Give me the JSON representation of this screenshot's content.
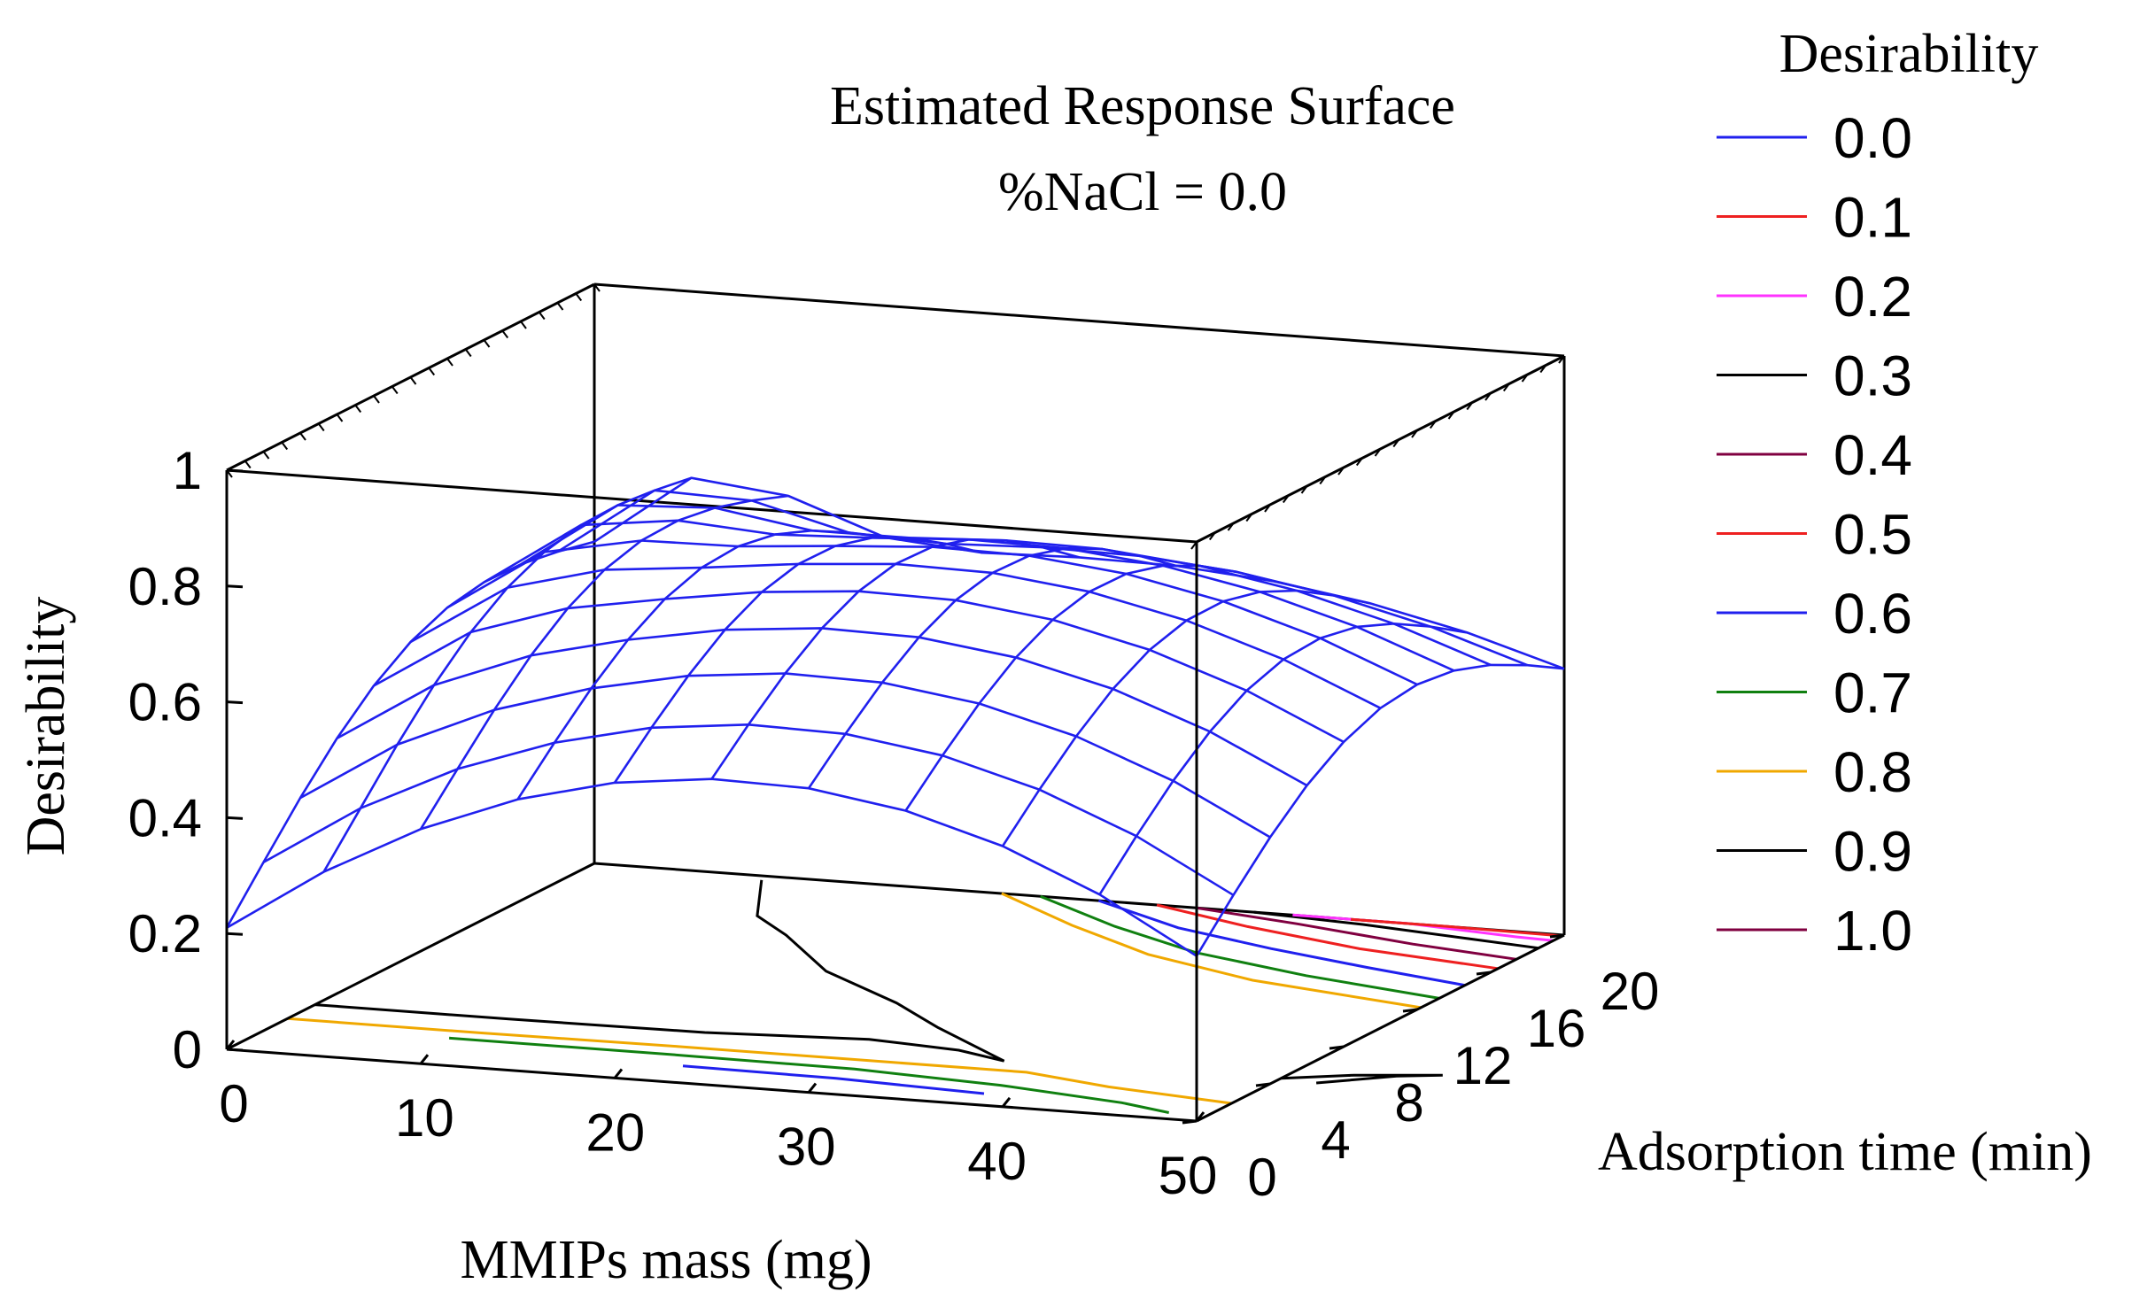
{
  "chart_data": {
    "type": "surface3d",
    "title": "Estimated Response Surface",
    "subtitle": "%NaCl = 0.0",
    "xlabel": "MMIPs mass (mg)",
    "ylabel": "Adsorption time (min)",
    "zlabel": "Desirability",
    "x_ticks": [
      "0",
      "10",
      "20",
      "30",
      "40",
      "50"
    ],
    "y_ticks": [
      "0",
      "4",
      "8",
      "12",
      "16",
      "20"
    ],
    "z_ticks": [
      "0",
      "0.2",
      "0.4",
      "0.6",
      "0.8",
      "1"
    ],
    "xlim": [
      0,
      50
    ],
    "ylim": [
      0,
      20
    ],
    "zlim": [
      0,
      1
    ],
    "x_grid": [
      0,
      5,
      10,
      15,
      20,
      25,
      30,
      35,
      40,
      45,
      50
    ],
    "y_grid": [
      0,
      2,
      4,
      6,
      8,
      10,
      12,
      14,
      16,
      18,
      20
    ],
    "surface_color": "#2020ee",
    "legend": {
      "title": "Desirability",
      "position": "right",
      "entries": [
        {
          "label": "0.0",
          "color": "#2020ee"
        },
        {
          "label": "0.1",
          "color": "#ee2020"
        },
        {
          "label": "0.2",
          "color": "#ff33ff"
        },
        {
          "label": "0.3",
          "color": "#000000"
        },
        {
          "label": "0.4",
          "color": "#800040"
        },
        {
          "label": "0.5",
          "color": "#ee2020"
        },
        {
          "label": "0.6",
          "color": "#2020ee"
        },
        {
          "label": "0.7",
          "color": "#108010"
        },
        {
          "label": "0.8",
          "color": "#f0a800"
        },
        {
          "label": "0.9",
          "color": "#000000"
        },
        {
          "label": "1.0",
          "color": "#800040"
        }
      ]
    }
  }
}
